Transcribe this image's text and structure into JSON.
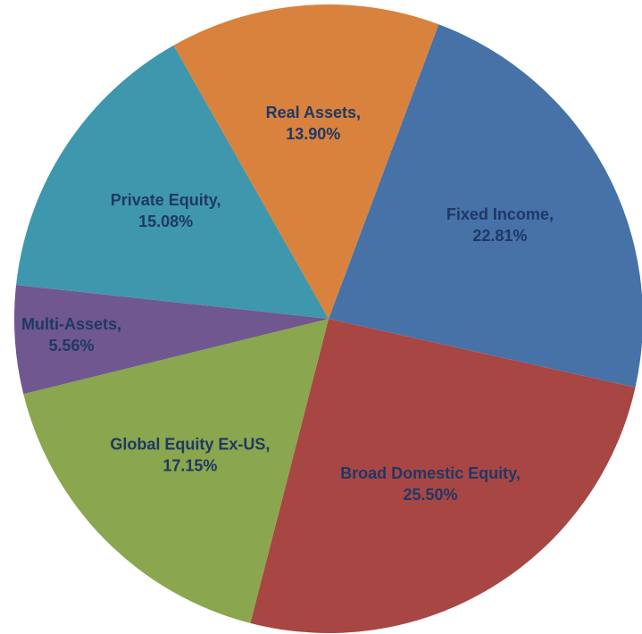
{
  "chart_data": {
    "type": "pie",
    "categories": [
      "Fixed Income,",
      "Broad Domestic Equity,",
      "Global Equity Ex-US,",
      "Multi-Assets,",
      "Private Equity,",
      "Real Assets,"
    ],
    "values": [
      22.81,
      25.5,
      17.15,
      5.56,
      15.08,
      13.9
    ],
    "value_labels": [
      "22.81%",
      "25.50%",
      "17.15%",
      "5.56%",
      "15.08%",
      "13.90%"
    ],
    "colors": [
      "#4672a8",
      "#a84643",
      "#8aa64e",
      "#70578f",
      "#3f97ad",
      "#d9823d"
    ]
  }
}
